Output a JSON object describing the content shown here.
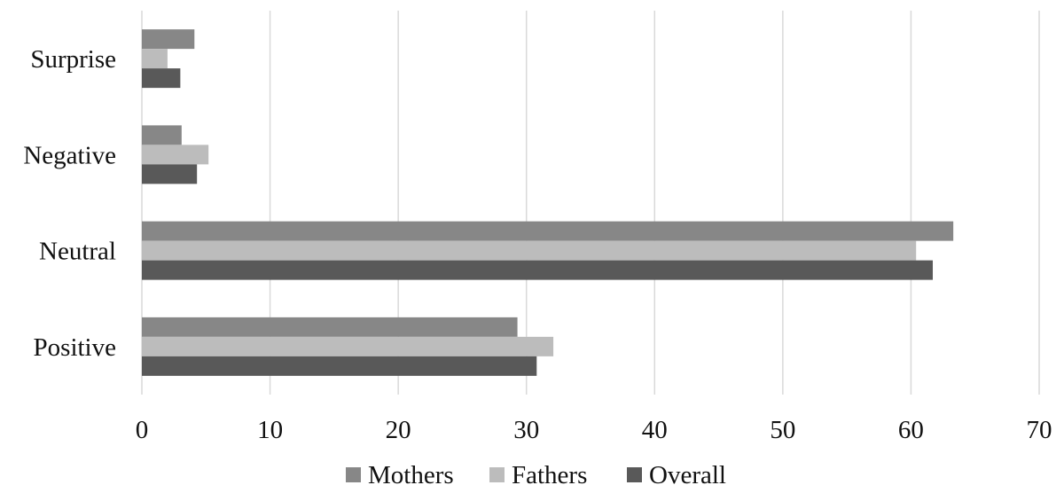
{
  "chart_data": {
    "type": "bar",
    "orientation": "horizontal",
    "categories": [
      "Positive",
      "Neutral",
      "Negative",
      "Surprise"
    ],
    "series": [
      {
        "name": "Mothers",
        "color": "#878787",
        "values": [
          29.3,
          63.3,
          3.1,
          4.1
        ]
      },
      {
        "name": "Fathers",
        "color": "#bcbcbc",
        "values": [
          32.1,
          60.4,
          5.2,
          2.0
        ]
      },
      {
        "name": "Overall",
        "color": "#595959",
        "values": [
          30.8,
          61.7,
          4.3,
          3.0
        ]
      }
    ],
    "xlim": [
      0,
      70
    ],
    "xticks": [
      0,
      10,
      20,
      30,
      40,
      50,
      60,
      70
    ],
    "grid": true,
    "legend": "bottom",
    "title": "",
    "xlabel": "",
    "ylabel": ""
  }
}
